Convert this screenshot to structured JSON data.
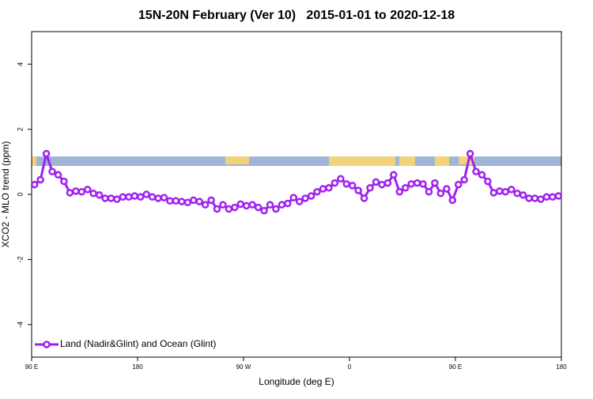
{
  "chart_data": {
    "type": "line",
    "title": "15N-20N February (Ver 10)   2015-01-01 to 2020-12-18",
    "x_label": "Longitude (deg E)",
    "y_label": "XCO2 - MLO trend (ppm)",
    "xlim": [
      90,
      540
    ],
    "xticks": [
      {
        "value": 90,
        "label": "90 E"
      },
      {
        "value": 180,
        "label": "180"
      },
      {
        "value": 270,
        "label": "90 W"
      },
      {
        "value": 360,
        "label": "0"
      },
      {
        "value": 450,
        "label": "90 E"
      },
      {
        "value": 540,
        "label": "180"
      }
    ],
    "ylim": [
      -5,
      5
    ],
    "yticks": [
      -4,
      -2,
      0,
      2,
      4
    ],
    "legend": "bottom-left",
    "x": [
      92.5,
      97.5,
      102.5,
      107.5,
      112.5,
      117.5,
      122.5,
      127.5,
      132.5,
      137.5,
      142.5,
      147.5,
      152.5,
      157.5,
      162.5,
      167.5,
      172.5,
      177.5,
      182.5,
      187.5,
      192.5,
      197.5,
      202.5,
      207.5,
      212.5,
      217.5,
      222.5,
      227.5,
      232.5,
      237.5,
      242.5,
      247.5,
      252.5,
      257.5,
      262.5,
      267.5,
      272.5,
      277.5,
      282.5,
      287.5,
      292.5,
      297.5,
      302.5,
      307.5,
      312.5,
      317.5,
      322.5,
      327.5,
      332.5,
      337.5,
      342.5,
      347.5,
      352.5,
      357.5,
      362.5,
      367.5,
      372.5,
      377.5,
      382.5,
      387.5,
      392.5,
      397.5,
      402.5,
      407.5,
      412.5,
      417.5,
      422.5,
      427.5,
      432.5,
      437.5,
      442.5,
      447.5,
      452.5,
      457.5,
      462.5,
      467.5,
      472.5,
      477.5,
      482.5,
      487.5,
      492.5,
      497.5,
      502.5,
      507.5,
      512.5,
      517.5,
      522.5,
      527.5,
      532.5,
      537.5
    ],
    "series": [
      {
        "name": "Land (Nadir&Glint) and Ocean (Glint)",
        "color": "#a020f0",
        "values": [
          0.3,
          0.45,
          1.25,
          0.7,
          0.6,
          0.4,
          0.05,
          0.1,
          0.08,
          0.15,
          0.03,
          -0.02,
          -0.12,
          -0.12,
          -0.15,
          -0.08,
          -0.08,
          -0.05,
          -0.08,
          0,
          -0.08,
          -0.12,
          -0.1,
          -0.2,
          -0.2,
          -0.22,
          -0.25,
          -0.18,
          -0.22,
          -0.32,
          -0.18,
          -0.45,
          -0.32,
          -0.45,
          -0.4,
          -0.3,
          -0.35,
          -0.32,
          -0.4,
          -0.5,
          -0.32,
          -0.45,
          -0.32,
          -0.28,
          -0.1,
          -0.22,
          -0.12,
          -0.05,
          0.08,
          0.17,
          0.2,
          0.35,
          0.48,
          0.32,
          0.27,
          0.12,
          -0.12,
          0.2,
          0.38,
          0.3,
          0.35,
          0.6,
          0.08,
          0.2,
          0.32,
          0.35,
          0.32,
          0.08,
          0.35,
          0.03,
          0.17,
          -0.18,
          0.3,
          0.45,
          1.25,
          0.7,
          0.6,
          0.4,
          0.05,
          0.1,
          0.08,
          0.15,
          0.03,
          -0.02,
          -0.12,
          -0.12,
          -0.15,
          -0.08,
          -0.08,
          -0.05
        ]
      }
    ]
  }
}
